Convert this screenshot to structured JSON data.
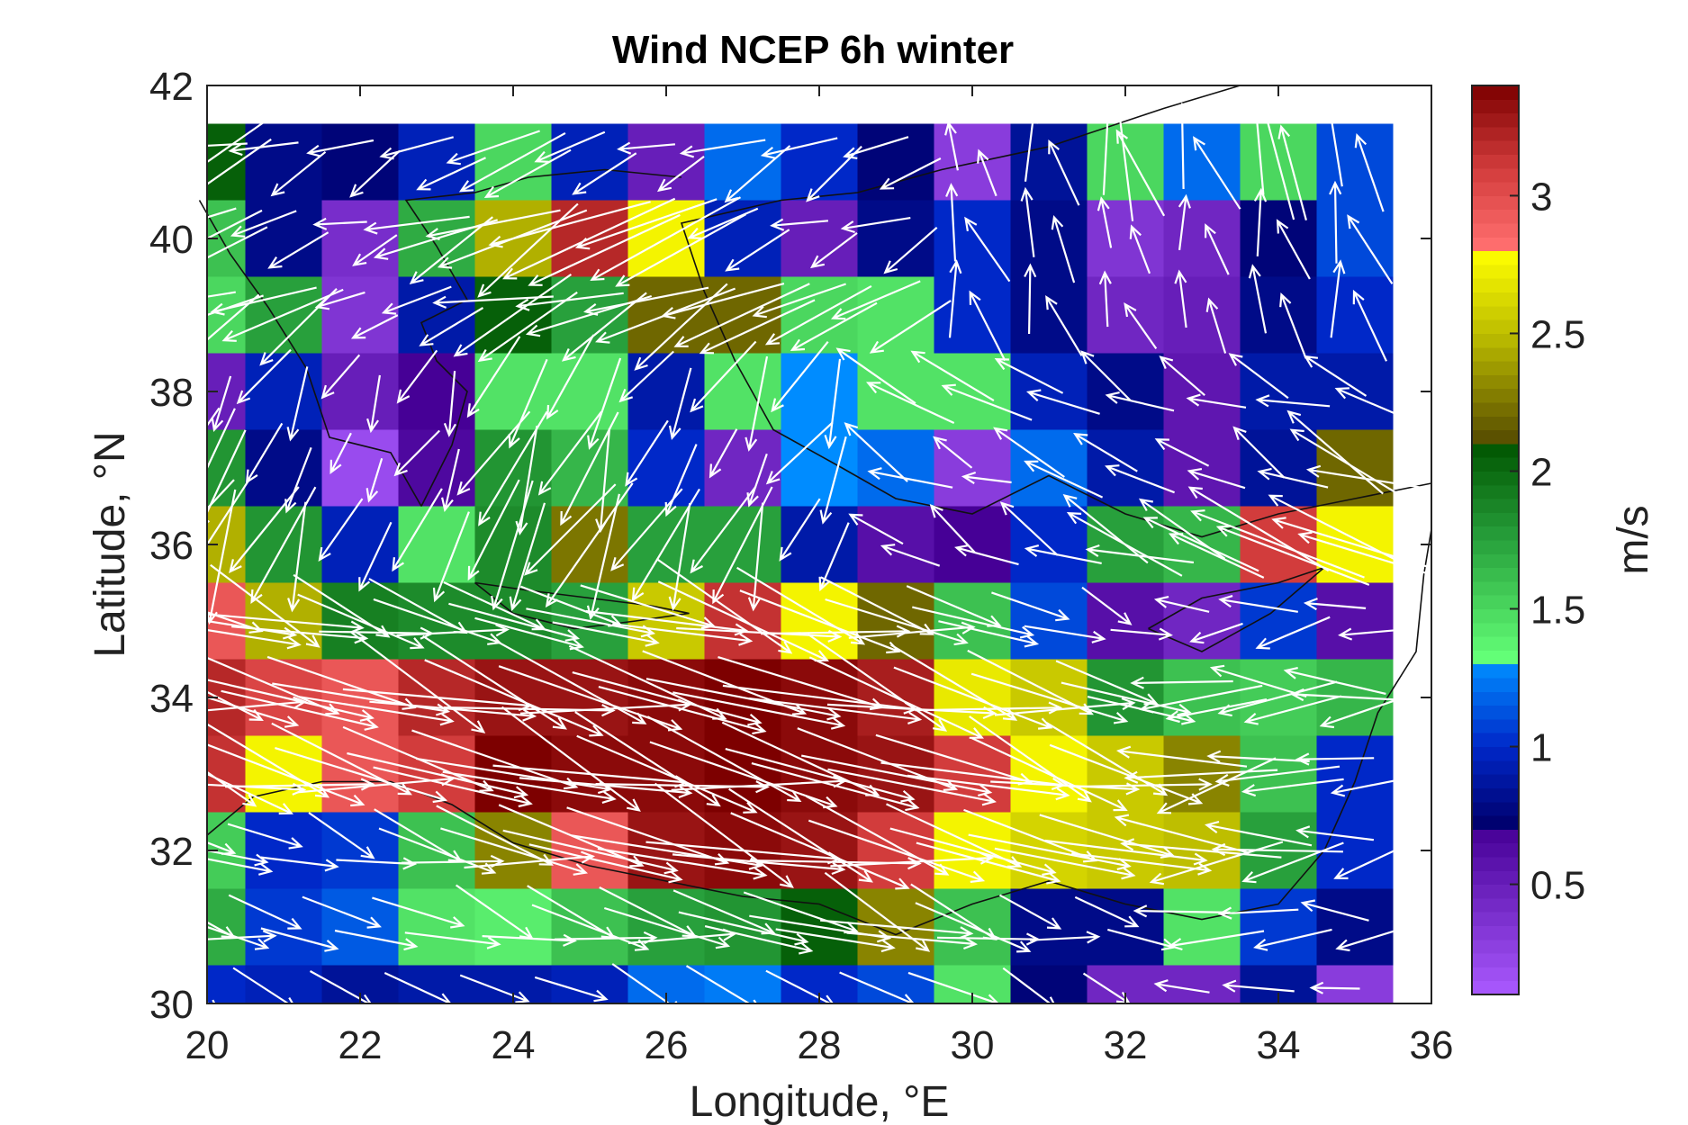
{
  "chart_data": {
    "type": "heatmap",
    "title": "Wind NCEP 6h winter",
    "xlabel": "Longitude, °E",
    "ylabel": "Latitude, °N",
    "xlim": [
      20,
      36
    ],
    "ylim": [
      30,
      42
    ],
    "x_ticks": [
      "20",
      "22",
      "24",
      "26",
      "28",
      "30",
      "32",
      "34",
      "36"
    ],
    "y_ticks": [
      "30",
      "32",
      "34",
      "36",
      "38",
      "40",
      "42"
    ],
    "colorbar": {
      "label": "m/s",
      "range": [
        0.1,
        3.4
      ],
      "ticks": [
        "0.5",
        "1",
        "1.5",
        "2",
        "2.5",
        "3"
      ],
      "tick_values": [
        0.5,
        1,
        1.5,
        2,
        2.5,
        3
      ]
    },
    "grid": {
      "lon_centers": [
        20,
        21,
        22,
        23,
        24,
        25,
        26,
        27,
        28,
        29,
        30,
        31,
        32,
        33,
        34,
        35
      ],
      "lat_centers": [
        41,
        40,
        39,
        38,
        37,
        36,
        35,
        34,
        33,
        32,
        31,
        30
      ],
      "speed": [
        [
          2.05,
          0.8,
          0.75,
          0.95,
          1.5,
          0.95,
          0.5,
          1.2,
          1.0,
          0.75,
          0.3,
          0.85,
          1.5,
          1.2,
          1.5,
          1.1
        ],
        [
          1.6,
          0.8,
          0.4,
          1.7,
          2.45,
          3.2,
          2.75,
          0.95,
          0.5,
          0.8,
          1.0,
          0.8,
          0.35,
          0.45,
          0.75,
          1.1
        ],
        [
          1.5,
          1.75,
          0.35,
          0.9,
          2.05,
          1.75,
          2.2,
          2.2,
          1.5,
          1.45,
          1.0,
          0.8,
          0.45,
          0.5,
          0.8,
          1.0
        ],
        [
          0.5,
          0.95,
          0.5,
          0.7,
          1.45,
          1.45,
          0.9,
          1.45,
          1.3,
          1.45,
          1.45,
          0.95,
          0.8,
          0.55,
          0.9,
          0.9
        ],
        [
          1.8,
          0.8,
          0.2,
          0.65,
          1.8,
          1.65,
          1.0,
          0.45,
          1.3,
          1.2,
          0.3,
          1.2,
          0.9,
          0.55,
          0.85,
          2.2
        ],
        [
          2.45,
          1.8,
          0.95,
          1.45,
          1.85,
          2.25,
          1.75,
          1.75,
          0.9,
          0.6,
          0.7,
          1.0,
          1.75,
          1.65,
          3.1,
          2.75
        ],
        [
          2.95,
          2.45,
          1.9,
          1.85,
          1.85,
          1.75,
          2.55,
          3.15,
          2.75,
          2.2,
          1.6,
          1.1,
          0.6,
          0.45,
          1.05,
          0.6
        ],
        [
          3.2,
          3.05,
          2.95,
          3.2,
          3.3,
          3.3,
          3.35,
          3.4,
          3.35,
          3.25,
          2.7,
          2.55,
          1.8,
          1.6,
          1.55,
          1.65
        ],
        [
          3.15,
          2.75,
          2.95,
          3.1,
          3.4,
          3.35,
          3.35,
          3.4,
          3.35,
          3.3,
          3.1,
          2.75,
          2.55,
          2.3,
          1.6,
          1.0
        ],
        [
          1.55,
          1.0,
          1.05,
          1.6,
          2.3,
          2.95,
          3.3,
          3.35,
          3.3,
          3.1,
          2.75,
          2.6,
          2.55,
          2.5,
          1.75,
          1.0
        ],
        [
          1.7,
          1.05,
          1.15,
          1.45,
          1.4,
          1.6,
          1.75,
          1.8,
          2.05,
          2.3,
          1.6,
          0.8,
          0.8,
          1.45,
          1.05,
          0.8
        ],
        [
          1.0,
          0.95,
          0.85,
          0.9,
          0.9,
          0.95,
          1.2,
          1.25,
          1.0,
          1.1,
          1.45,
          0.75,
          0.45,
          0.45,
          0.85,
          0.3
        ]
      ]
    }
  }
}
